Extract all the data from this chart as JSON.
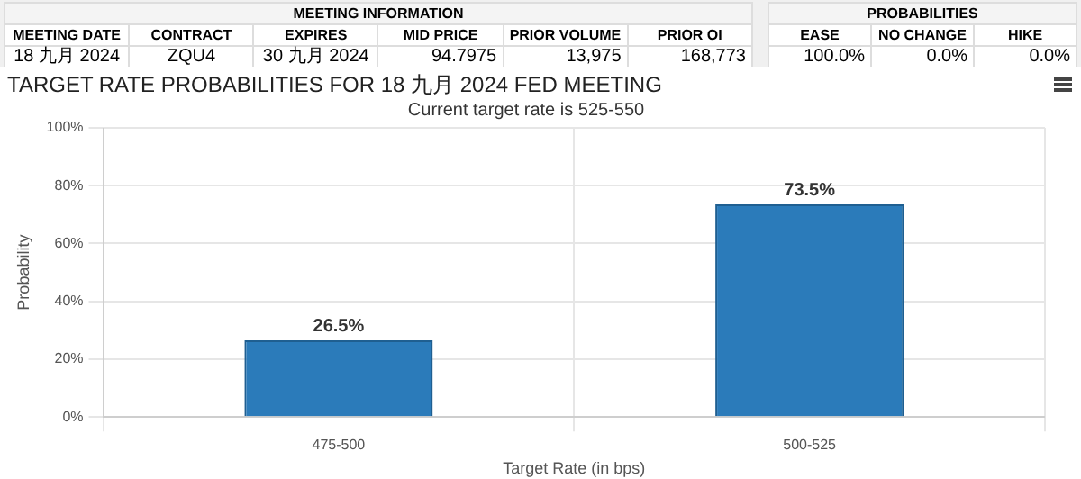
{
  "chart_data": {
    "type": "bar",
    "title": "TARGET RATE PROBABILITIES FOR 18 九月 2024 FED MEETING",
    "subtitle": "Current target rate is 525-550",
    "xlabel": "Target Rate (in bps)",
    "ylabel": "Probability",
    "categories": [
      "475-500",
      "500-525"
    ],
    "values": [
      26.5,
      73.5
    ],
    "color": "#2b7bba",
    "value_labels": [
      "26.5%",
      "73.5%"
    ],
    "ylim": [
      0,
      100
    ],
    "yticks": [
      {
        "value": 0,
        "label": "0%"
      },
      {
        "value": 20,
        "label": "20%"
      },
      {
        "value": 40,
        "label": "40%"
      },
      {
        "value": 60,
        "label": "60%"
      },
      {
        "value": 80,
        "label": "80%"
      },
      {
        "value": 100,
        "label": "100%"
      }
    ],
    "grid": true,
    "legend": false,
    "annotations": [
      "MEETING INFORMATION",
      "MEETING DATE",
      "CONTRACT",
      "EXPIRES",
      "MID PRICE",
      "PRIOR VOLUME",
      "PRIOR OI",
      "18 九月 2024",
      "ZQU4",
      "30 九月 2024",
      "94.7975",
      "13,975",
      "168,773",
      "PROBABILITIES",
      "EASE",
      "NO CHANGE",
      "HIKE",
      "100.0%",
      "0.0%",
      "0.0%"
    ]
  }
}
